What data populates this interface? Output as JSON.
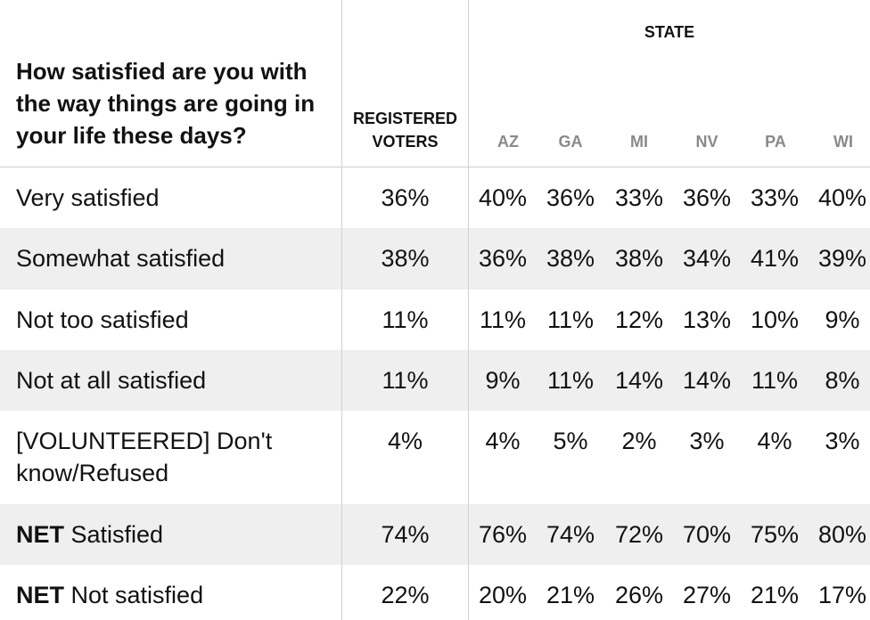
{
  "header": {
    "question": "How satisfied are you with the way things are going in your life these days?",
    "registered_voters": "REGISTERED VOTERS",
    "state_group": "STATE",
    "states": [
      "AZ",
      "GA",
      "MI",
      "NV",
      "PA",
      "WI"
    ]
  },
  "rows": [
    {
      "prefix": "",
      "label": "Very satisfied",
      "rv": "36%",
      "values": [
        "40%",
        "36%",
        "33%",
        "36%",
        "33%",
        "40%"
      ]
    },
    {
      "prefix": "",
      "label": "Somewhat satisfied",
      "rv": "38%",
      "values": [
        "36%",
        "38%",
        "38%",
        "34%",
        "41%",
        "39%"
      ]
    },
    {
      "prefix": "",
      "label": "Not too satisfied",
      "rv": "11%",
      "values": [
        "11%",
        "11%",
        "12%",
        "13%",
        "10%",
        "9%"
      ]
    },
    {
      "prefix": "",
      "label": "Not at all satisfied",
      "rv": "11%",
      "values": [
        "9%",
        "11%",
        "14%",
        "14%",
        "11%",
        "8%"
      ]
    },
    {
      "prefix": "",
      "label": "[VOLUNTEERED] Don't know/Refused",
      "rv": "4%",
      "values": [
        "4%",
        "5%",
        "2%",
        "3%",
        "4%",
        "3%"
      ]
    },
    {
      "prefix": "NET",
      "label": "Satisfied",
      "rv": "74%",
      "values": [
        "76%",
        "74%",
        "72%",
        "70%",
        "75%",
        "80%"
      ]
    },
    {
      "prefix": "NET",
      "label": "Not satisfied",
      "rv": "22%",
      "values": [
        "20%",
        "21%",
        "26%",
        "27%",
        "21%",
        "17%"
      ]
    }
  ]
}
